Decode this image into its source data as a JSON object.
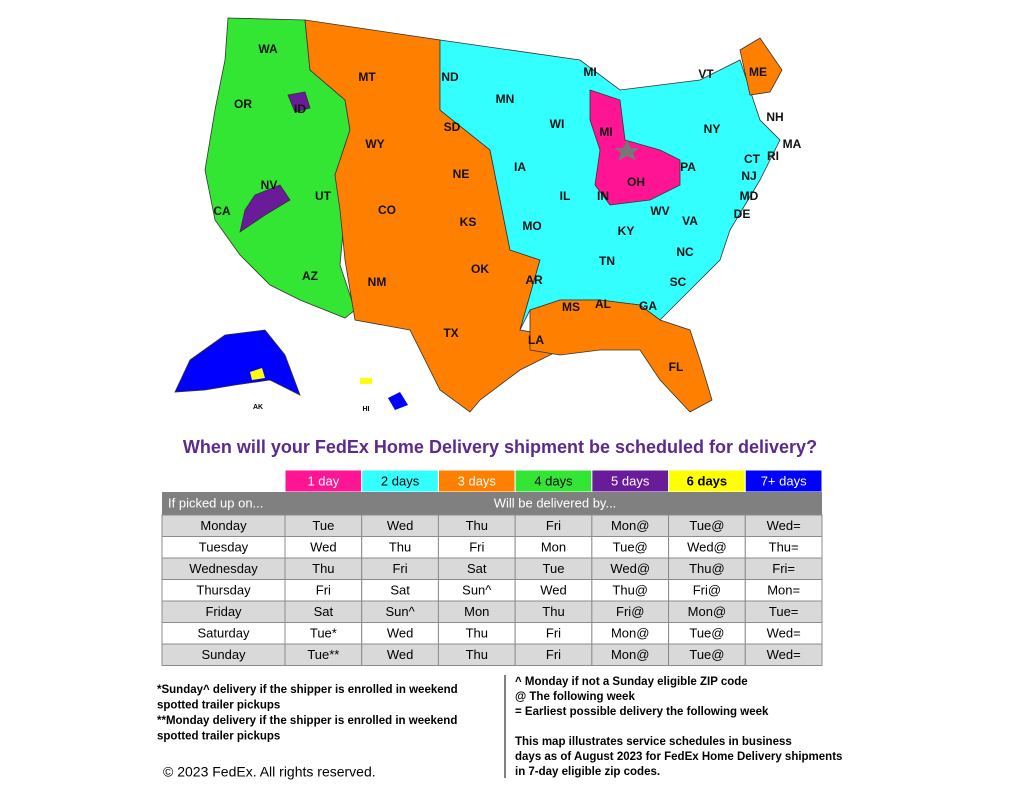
{
  "map": {
    "states": [
      "WA",
      "OR",
      "MT",
      "ND",
      "MN",
      "MI",
      "VT",
      "ME",
      "NH",
      "MA",
      "ID",
      "SD",
      "WI",
      "MI",
      "NY",
      "RI",
      "CT",
      "WY",
      "NJ",
      "IA",
      "PA",
      "NV",
      "OH",
      "MD",
      "NE",
      "IL",
      "IN",
      "UT",
      "CA",
      "CO",
      "DE",
      "WV",
      "VA",
      "KS",
      "MO",
      "KY",
      "NC",
      "TN",
      "AZ",
      "NM",
      "OK",
      "AR",
      "SC",
      "GA",
      "AL",
      "MS",
      "TX",
      "LA",
      "FL"
    ],
    "small_labels": [
      "AK",
      "HI"
    ]
  },
  "title": "When will your FedEx Home Delivery shipment be scheduled for delivery?",
  "table": {
    "legend": [
      {
        "label": "1 day",
        "color": "#ff1493"
      },
      {
        "label": "2 days",
        "color": "#33ffff"
      },
      {
        "label": "3 days",
        "color": "#ff8000"
      },
      {
        "label": "4 days",
        "color": "#33e633"
      },
      {
        "label": "5 days",
        "color": "#6a1b9a"
      },
      {
        "label": "6 days",
        "color": "#ffff00"
      },
      {
        "label": "7+ days",
        "color": "#0000ff"
      }
    ],
    "header": [
      "If picked up on...",
      "Will be delivered by..."
    ],
    "rows": [
      [
        "Monday",
        "Tue",
        "Wed",
        "Thu",
        "Fri",
        "Mon@",
        "Tue@",
        "Wed="
      ],
      [
        "Tuesday",
        "Wed",
        "Thu",
        "Fri",
        "Mon",
        "Tue@",
        "Wed@",
        "Thu="
      ],
      [
        "Wednesday",
        "Thu",
        "Fri",
        "Sat",
        "Tue",
        "Wed@",
        "Thu@",
        "Fri="
      ],
      [
        "Thursday",
        "Fri",
        "Sat",
        "Sun^",
        "Wed",
        "Thu@",
        "Fri@",
        "Mon="
      ],
      [
        "Friday",
        "Sat",
        "Sun^",
        "Mon",
        "Thu",
        "Fri@",
        "Mon@",
        "Tue="
      ],
      [
        "Saturday",
        "Tue*",
        "Wed",
        "Thu",
        "Fri",
        "Mon@",
        "Tue@",
        "Wed="
      ],
      [
        "Sunday",
        "Tue**",
        "Wed",
        "Thu",
        "Fri",
        "Mon@",
        "Tue@",
        "Wed="
      ]
    ]
  },
  "notes_left": [
    "*Sunday^ delivery if the shipper is enrolled in weekend",
    "spotted trailer pickups",
    "**Monday delivery if the shipper is enrolled in weekend",
    "spotted trailer pickups"
  ],
  "notes_right": [
    "^ Monday if not a Sunday eligible ZIP code",
    "@ The following week",
    "= Earliest possible delivery the following week"
  ],
  "disclaimer": [
    "This map illustrates service schedules in business",
    "days as of August 2023 for FedEx Home Delivery shipments",
    "in 7-day eligible zip codes."
  ],
  "copyright": "© 2023 FedEx.  All rights reserved."
}
